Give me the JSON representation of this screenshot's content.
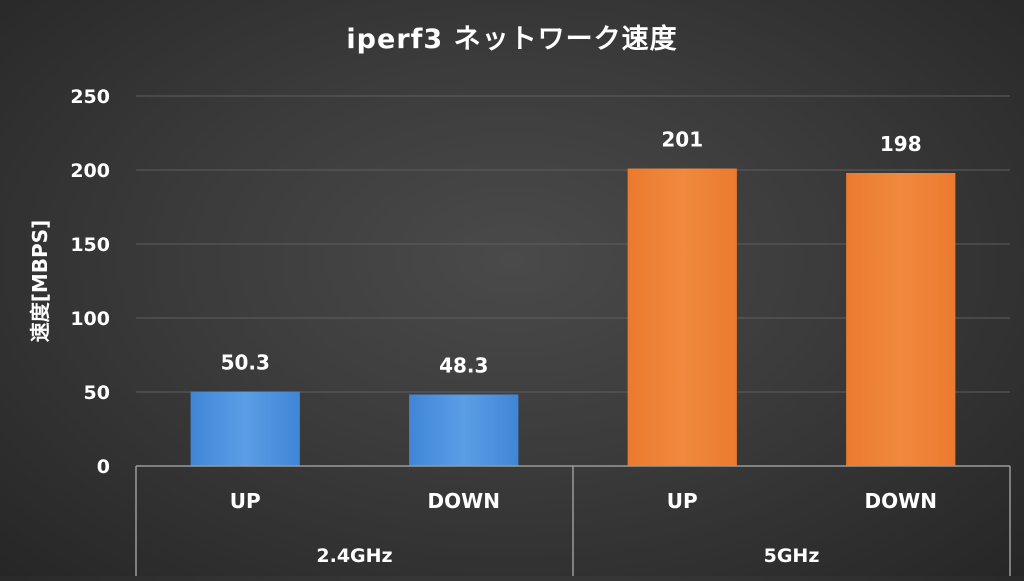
{
  "chart_data": {
    "type": "bar",
    "title": "iperf3 ネットワーク速度",
    "ylabel": "速度[MBPS]",
    "xlabel": "",
    "ylim": [
      0,
      250
    ],
    "yticks": [
      0,
      50,
      100,
      150,
      200,
      250
    ],
    "grid": true,
    "legend": "none",
    "groups": [
      {
        "name": "2.4GHz",
        "color": "#4a90d9",
        "categories": [
          "UP",
          "DOWN"
        ],
        "values": [
          50.3,
          48.3
        ],
        "value_labels": [
          "50.3",
          "48.3"
        ]
      },
      {
        "name": "5GHz",
        "color": "#ed7d31",
        "categories": [
          "UP",
          "DOWN"
        ],
        "values": [
          201,
          198
        ],
        "value_labels": [
          "201",
          "198"
        ]
      }
    ]
  }
}
